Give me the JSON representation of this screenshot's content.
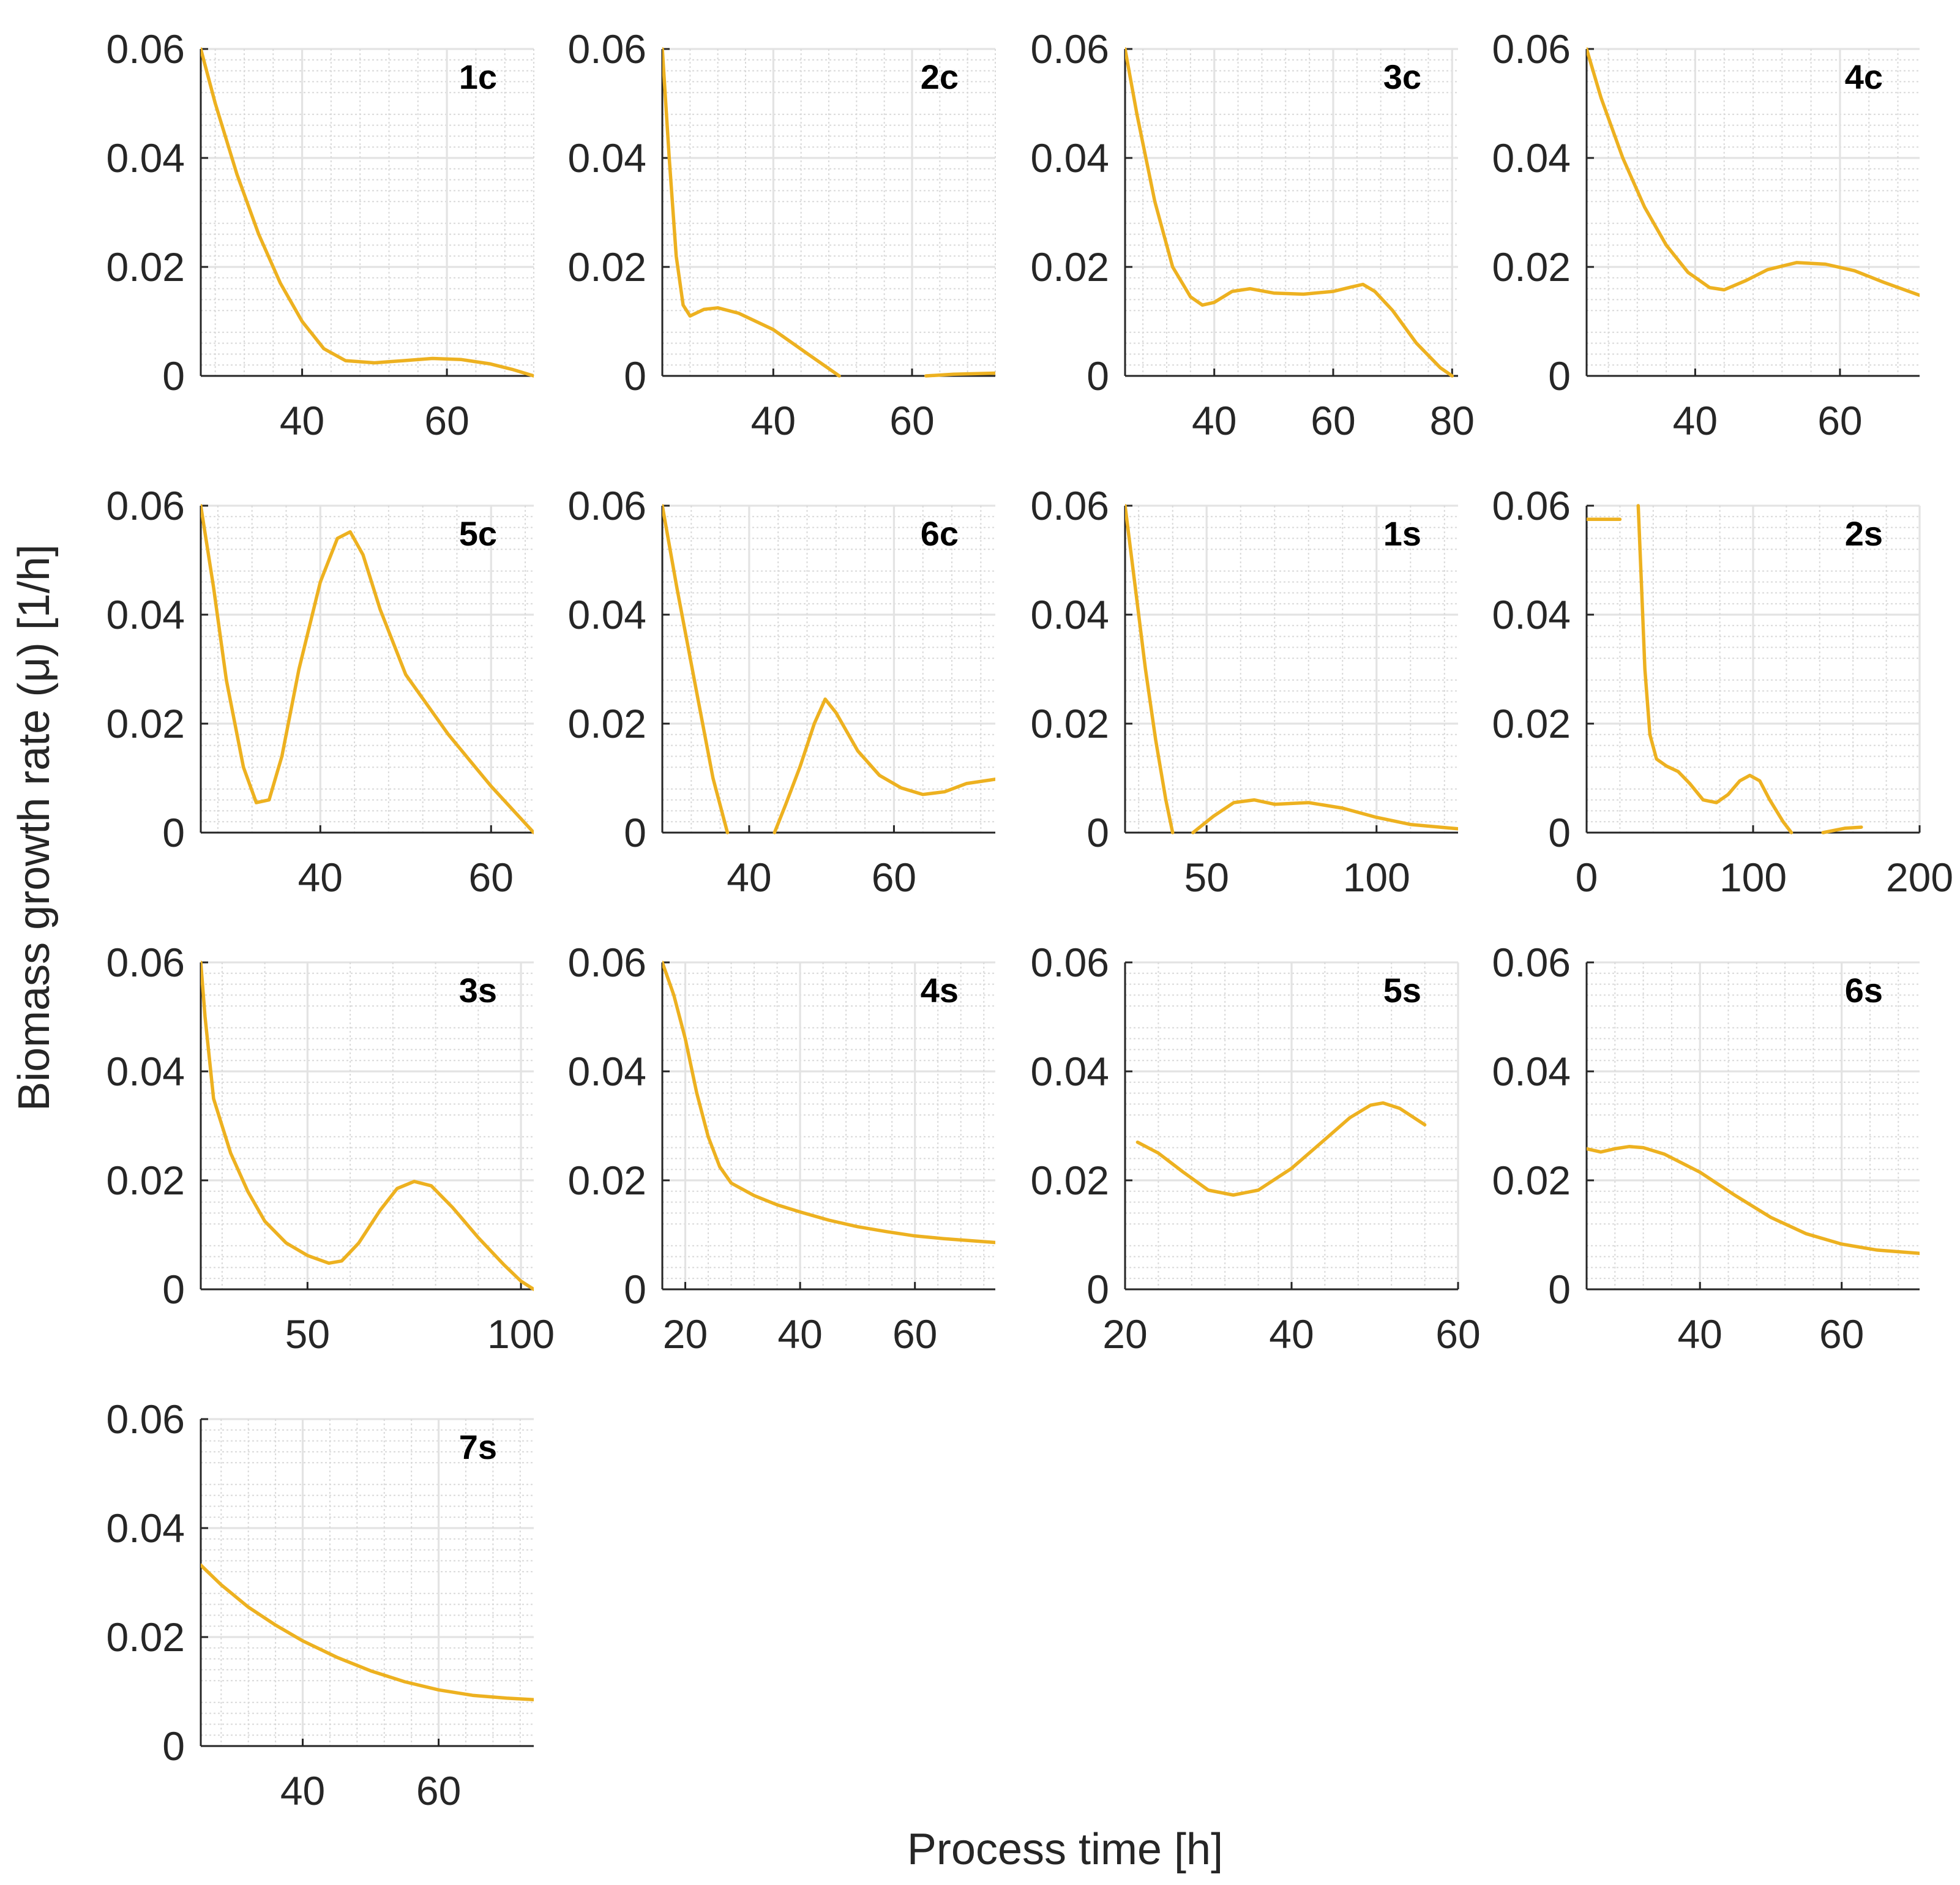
{
  "chart_data": {
    "type": "line",
    "xlabel": "Process time [h]",
    "ylabel": "Biomass growth rate (μ) [1/h]",
    "line_color": "#EDB120",
    "ylim": [
      0,
      0.06
    ],
    "yticks": [
      0,
      0.02,
      0.04,
      0.06
    ],
    "ytick_labels": [
      "0",
      "0.02",
      "0.04",
      "0.06"
    ],
    "grid": true,
    "panels": [
      {
        "label": "1c",
        "xlim": [
          26,
          72
        ],
        "xticks": [
          40,
          60
        ],
        "xtick_labels": [
          "40",
          "60"
        ],
        "series": [
          [
            [
              26,
              0.06
            ],
            [
              28,
              0.05
            ],
            [
              31,
              0.037
            ],
            [
              34,
              0.026
            ],
            [
              37,
              0.017
            ],
            [
              40,
              0.01
            ],
            [
              43,
              0.005
            ],
            [
              46,
              0.0028
            ],
            [
              50,
              0.0024
            ],
            [
              54,
              0.0028
            ],
            [
              58,
              0.0032
            ],
            [
              62,
              0.003
            ],
            [
              66,
              0.0022
            ],
            [
              69,
              0.0012
            ],
            [
              72,
              0.0
            ]
          ]
        ]
      },
      {
        "label": "2c",
        "xlim": [
          24,
          72
        ],
        "xticks": [
          40,
          60
        ],
        "xtick_labels": [
          "40",
          "60"
        ],
        "series": [
          [
            [
              24,
              0.06
            ],
            [
              25,
              0.04
            ],
            [
              26,
              0.022
            ],
            [
              27,
              0.013
            ],
            [
              28,
              0.011
            ],
            [
              30,
              0.0122
            ],
            [
              32,
              0.0125
            ],
            [
              35,
              0.0115
            ],
            [
              40,
              0.0085
            ],
            [
              45,
              0.004
            ],
            [
              49.5,
              0.0
            ]
          ],
          [
            [
              62,
              0.0
            ],
            [
              66,
              0.0003
            ],
            [
              72,
              0.0005
            ]
          ]
        ]
      },
      {
        "label": "3c",
        "xlim": [
          25,
          81
        ],
        "xticks": [
          40,
          60,
          80
        ],
        "xtick_labels": [
          "40",
          "60",
          "80"
        ],
        "series": [
          [
            [
              25,
              0.06
            ],
            [
              27,
              0.048
            ],
            [
              30,
              0.032
            ],
            [
              33,
              0.02
            ],
            [
              36,
              0.0145
            ],
            [
              38,
              0.013
            ],
            [
              40,
              0.0135
            ],
            [
              43,
              0.0155
            ],
            [
              46,
              0.016
            ],
            [
              50,
              0.0152
            ],
            [
              55,
              0.015
            ],
            [
              60,
              0.0155
            ],
            [
              63,
              0.0163
            ],
            [
              65,
              0.0168
            ],
            [
              67,
              0.0155
            ],
            [
              70,
              0.012
            ],
            [
              74,
              0.006
            ],
            [
              78,
              0.0015
            ],
            [
              80,
              0.0
            ]
          ]
        ]
      },
      {
        "label": "4c",
        "xlim": [
          25,
          71
        ],
        "xticks": [
          40,
          60
        ],
        "xtick_labels": [
          "40",
          "60"
        ],
        "series": [
          [
            [
              25,
              0.06
            ],
            [
              27,
              0.051
            ],
            [
              30,
              0.04
            ],
            [
              33,
              0.031
            ],
            [
              36,
              0.024
            ],
            [
              39,
              0.019
            ],
            [
              42,
              0.0162
            ],
            [
              44,
              0.0158
            ],
            [
              47,
              0.0175
            ],
            [
              50,
              0.0195
            ],
            [
              54,
              0.0208
            ],
            [
              58,
              0.0205
            ],
            [
              62,
              0.0193
            ],
            [
              66,
              0.0172
            ],
            [
              71,
              0.0148
            ]
          ]
        ]
      },
      {
        "label": "5c",
        "xlim": [
          26,
          65
        ],
        "xticks": [
          40,
          60
        ],
        "xtick_labels": [
          "40",
          "60"
        ],
        "series": [
          [
            [
              26,
              0.06
            ],
            [
              27.5,
              0.045
            ],
            [
              29,
              0.028
            ],
            [
              31,
              0.012
            ],
            [
              32.5,
              0.0055
            ],
            [
              34,
              0.006
            ],
            [
              35.5,
              0.014
            ],
            [
              37.5,
              0.03
            ],
            [
              40,
              0.046
            ],
            [
              42,
              0.054
            ],
            [
              43.5,
              0.0552
            ],
            [
              45,
              0.051
            ],
            [
              47,
              0.041
            ],
            [
              50,
              0.029
            ],
            [
              55,
              0.018
            ],
            [
              60,
              0.0085
            ],
            [
              65,
              0.0
            ]
          ]
        ]
      },
      {
        "label": "6c",
        "xlim": [
          28,
          74
        ],
        "xticks": [
          40,
          60
        ],
        "xtick_labels": [
          "40",
          "60"
        ],
        "series": [
          [
            [
              28,
              0.06
            ],
            [
              30,
              0.045
            ],
            [
              33,
              0.024
            ],
            [
              35,
              0.01
            ],
            [
              37,
              0.0
            ]
          ],
          [
            [
              43.5,
              0.0
            ],
            [
              45,
              0.005
            ],
            [
              47,
              0.012
            ],
            [
              49,
              0.02
            ],
            [
              50.5,
              0.0245
            ],
            [
              52,
              0.022
            ],
            [
              55,
              0.015
            ],
            [
              58,
              0.0105
            ],
            [
              61,
              0.0082
            ],
            [
              64,
              0.007
            ],
            [
              67,
              0.0075
            ],
            [
              70,
              0.009
            ],
            [
              74,
              0.0098
            ]
          ]
        ]
      },
      {
        "label": "1s",
        "xlim": [
          26,
          124
        ],
        "xticks": [
          50,
          100
        ],
        "xtick_labels": [
          "50",
          "100"
        ],
        "series": [
          [
            [
              26,
              0.06
            ],
            [
              29,
              0.045
            ],
            [
              32,
              0.03
            ],
            [
              35,
              0.017
            ],
            [
              38,
              0.006
            ],
            [
              40,
              0.0
            ]
          ],
          [
            [
              46,
              0.0
            ],
            [
              52,
              0.003
            ],
            [
              58,
              0.0055
            ],
            [
              64,
              0.006
            ],
            [
              70,
              0.0052
            ],
            [
              80,
              0.0055
            ],
            [
              90,
              0.0045
            ],
            [
              100,
              0.0028
            ],
            [
              110,
              0.0015
            ],
            [
              124,
              0.0007
            ]
          ]
        ]
      },
      {
        "label": "2s",
        "xlim": [
          0,
          200
        ],
        "xticks": [
          0,
          100,
          200
        ],
        "xtick_labels": [
          "0",
          "100",
          "200"
        ],
        "series": [
          [
            [
              0,
              0.0575
            ],
            [
              20,
              0.0575
            ]
          ],
          [
            [
              31,
              0.06
            ],
            [
              33,
              0.045
            ],
            [
              35,
              0.03
            ],
            [
              38,
              0.018
            ],
            [
              42,
              0.0135
            ],
            [
              48,
              0.0122
            ],
            [
              55,
              0.0112
            ],
            [
              62,
              0.009
            ],
            [
              70,
              0.006
            ],
            [
              78,
              0.0055
            ],
            [
              85,
              0.007
            ],
            [
              92,
              0.0095
            ],
            [
              98,
              0.0105
            ],
            [
              104,
              0.0095
            ],
            [
              110,
              0.006
            ],
            [
              118,
              0.002
            ],
            [
              123,
              0.0
            ]
          ],
          [
            [
              142,
              0.0
            ],
            [
              155,
              0.0008
            ],
            [
              165,
              0.001
            ]
          ]
        ]
      },
      {
        "label": "3s",
        "xlim": [
          25,
          103
        ],
        "xticks": [
          50,
          100
        ],
        "xtick_labels": [
          "50",
          "100"
        ],
        "series": [
          [
            [
              25,
              0.06
            ],
            [
              26,
              0.05
            ],
            [
              28,
              0.035
            ],
            [
              32,
              0.025
            ],
            [
              36,
              0.018
            ],
            [
              40,
              0.0125
            ],
            [
              45,
              0.0085
            ],
            [
              50,
              0.0062
            ],
            [
              55,
              0.0048
            ],
            [
              58,
              0.0052
            ],
            [
              62,
              0.0085
            ],
            [
              67,
              0.0145
            ],
            [
              71,
              0.0185
            ],
            [
              75,
              0.0198
            ],
            [
              79,
              0.019
            ],
            [
              84,
              0.015
            ],
            [
              90,
              0.0095
            ],
            [
              96,
              0.0045
            ],
            [
              100,
              0.0015
            ],
            [
              103,
              0.0
            ]
          ]
        ]
      },
      {
        "label": "4s",
        "xlim": [
          16,
          74
        ],
        "xticks": [
          20,
          40,
          60
        ],
        "xtick_labels": [
          "20",
          "40",
          "60"
        ],
        "series": [
          [
            [
              16,
              0.06
            ],
            [
              18,
              0.054
            ],
            [
              20,
              0.046
            ],
            [
              22,
              0.036
            ],
            [
              24,
              0.028
            ],
            [
              26,
              0.0225
            ],
            [
              28,
              0.0195
            ],
            [
              32,
              0.0172
            ],
            [
              36,
              0.0155
            ],
            [
              40,
              0.0142
            ],
            [
              45,
              0.0127
            ],
            [
              50,
              0.0115
            ],
            [
              55,
              0.0106
            ],
            [
              60,
              0.0098
            ],
            [
              65,
              0.0093
            ],
            [
              70,
              0.0089
            ],
            [
              74,
              0.0086
            ]
          ]
        ]
      },
      {
        "label": "5s",
        "xlim": [
          20,
          60
        ],
        "xticks": [
          20,
          40,
          60
        ],
        "xtick_labels": [
          "20",
          "40",
          "60"
        ],
        "series": [
          [
            [
              21.5,
              0.027
            ],
            [
              24,
              0.025
            ],
            [
              27,
              0.0215
            ],
            [
              30,
              0.0182
            ],
            [
              33,
              0.0173
            ],
            [
              36,
              0.0182
            ],
            [
              40,
              0.0222
            ],
            [
              44,
              0.0275
            ],
            [
              47,
              0.0315
            ],
            [
              49.5,
              0.0338
            ],
            [
              51,
              0.0342
            ],
            [
              53,
              0.0332
            ],
            [
              56,
              0.0302
            ]
          ]
        ]
      },
      {
        "label": "6s",
        "xlim": [
          24,
          71
        ],
        "xticks": [
          40,
          60
        ],
        "xtick_labels": [
          "40",
          "60"
        ],
        "series": [
          [
            [
              24,
              0.0258
            ],
            [
              26,
              0.0252
            ],
            [
              28,
              0.0258
            ],
            [
              30,
              0.0262
            ],
            [
              32,
              0.026
            ],
            [
              35,
              0.0248
            ],
            [
              40,
              0.0215
            ],
            [
              45,
              0.0172
            ],
            [
              50,
              0.0132
            ],
            [
              55,
              0.0102
            ],
            [
              60,
              0.0083
            ],
            [
              65,
              0.0072
            ],
            [
              71,
              0.0066
            ]
          ]
        ]
      },
      {
        "label": "7s",
        "xlim": [
          25,
          74
        ],
        "xticks": [
          40,
          60
        ],
        "xtick_labels": [
          "40",
          "60"
        ],
        "series": [
          [
            [
              25,
              0.0332
            ],
            [
              28,
              0.0296
            ],
            [
              32,
              0.0255
            ],
            [
              36,
              0.0222
            ],
            [
              40,
              0.0193
            ],
            [
              45,
              0.0163
            ],
            [
              50,
              0.0138
            ],
            [
              55,
              0.0118
            ],
            [
              60,
              0.0103
            ],
            [
              65,
              0.0093
            ],
            [
              70,
              0.0088
            ],
            [
              74,
              0.0085
            ]
          ]
        ]
      }
    ]
  }
}
